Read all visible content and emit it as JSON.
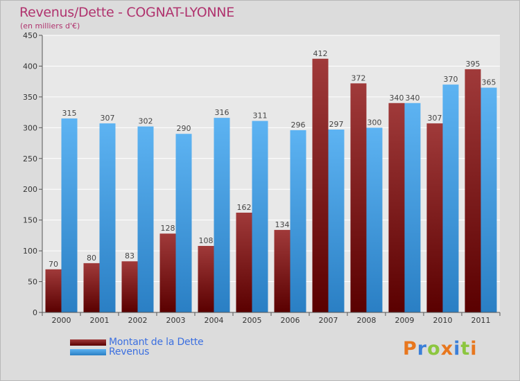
{
  "chart_data": {
    "type": "bar",
    "title": "Revenus/Dette - COGNAT-LYONNE",
    "subtitle": "(en milliers d'€)",
    "xlabel": "",
    "ylabel": "",
    "categories": [
      "2000",
      "2001",
      "2002",
      "2003",
      "2004",
      "2005",
      "2006",
      "2007",
      "2008",
      "2009",
      "2010",
      "2011"
    ],
    "series": [
      {
        "name": "Montant de la Dette",
        "values": [
          70,
          80,
          83,
          128,
          108,
          162,
          134,
          412,
          372,
          340,
          307,
          395
        ],
        "color": "#7a1010"
      },
      {
        "name": "Revenus",
        "values": [
          315,
          307,
          302,
          290,
          316,
          311,
          296,
          297,
          300,
          340,
          370,
          365
        ],
        "color": "#3a9be3"
      }
    ],
    "ylim": [
      0,
      450
    ],
    "yticks": [
      0,
      50,
      100,
      150,
      200,
      250,
      300,
      350,
      400,
      450
    ],
    "grid": true,
    "legend_position": "bottom-left"
  },
  "logo": {
    "letters": [
      "P",
      "r",
      "o",
      "x",
      "i",
      "t",
      "i"
    ],
    "colors": [
      "#e8771e",
      "#3b7fd8",
      "#8cc63f",
      "#e8771e",
      "#3b7fd8",
      "#8cc63f",
      "#e8771e"
    ]
  }
}
